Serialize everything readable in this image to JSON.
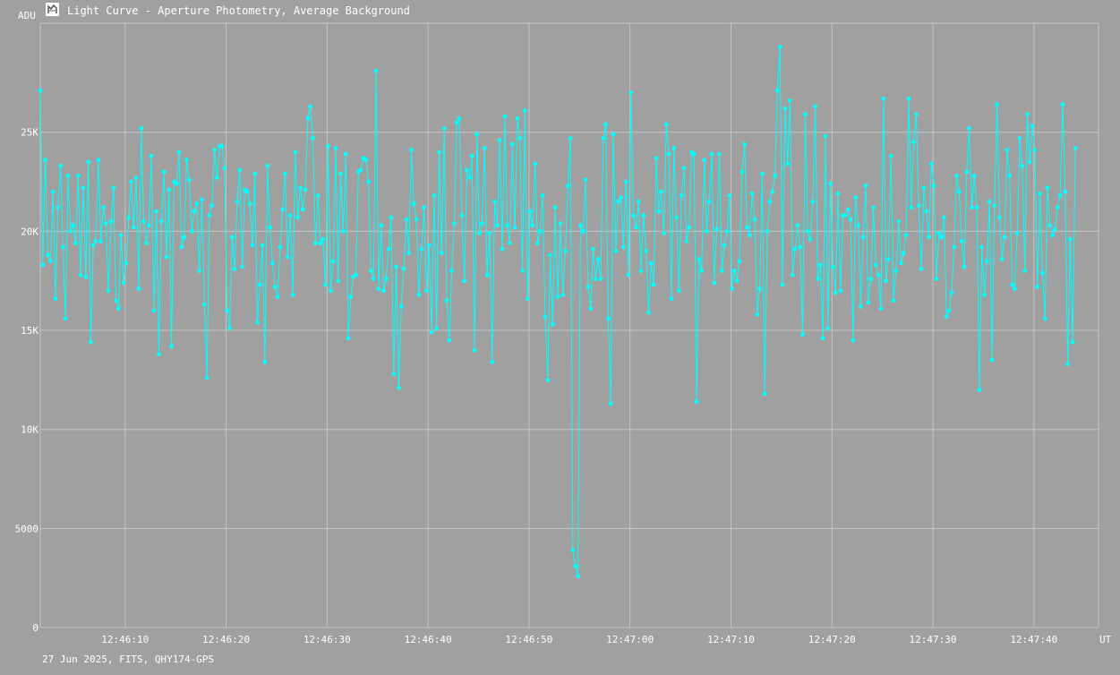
{
  "window": {
    "title": "Light Curve - Aperture Photometry, Average Background",
    "icon": "light-curve-app-icon",
    "footer": "27 Jun 2025, FITS, QHY174-GPS"
  },
  "colors": {
    "background": "#a0a0a0",
    "grid": "#c4c4c4",
    "series": "#00ffff",
    "text": "#ffffff"
  },
  "chart_data": {
    "type": "line",
    "title": "Light Curve - Aperture Photometry, Average Background",
    "xlabel": "UT",
    "ylabel": "ADU",
    "ylim": [
      0,
      30500
    ],
    "xlim": [
      "12:46:01.6",
      "12:47:46.4"
    ],
    "yticks": [
      {
        "value": 0,
        "label": "0"
      },
      {
        "value": 5000,
        "label": "5000"
      },
      {
        "value": 10000,
        "label": "10K"
      },
      {
        "value": 15000,
        "label": "15K"
      },
      {
        "value": 20000,
        "label": "20K"
      },
      {
        "value": 25000,
        "label": "25K"
      }
    ],
    "xticks": [
      "12:46:10",
      "12:46:20",
      "12:46:30",
      "12:46:40",
      "12:46:50",
      "12:47:00",
      "12:47:10",
      "12:47:20",
      "12:47:30",
      "12:47:40"
    ],
    "grid": true,
    "sample_interval_s": 0.25,
    "series": [
      {
        "values": [
          27100,
          18300,
          23600,
          18800,
          18500,
          22000,
          16600,
          21200,
          23300,
          19200,
          15600,
          22800,
          20000,
          20300,
          19400,
          22800,
          17800,
          22200,
          17700,
          23500,
          14400,
          19300,
          19500,
          23600,
          19500,
          21200,
          20400,
          17000,
          20500,
          22200,
          16500,
          16100,
          19800,
          17400,
          18400,
          20700,
          22500,
          20200,
          22700,
          17100,
          25200,
          20500,
          19400,
          20300,
          23800,
          16000,
          21000,
          13800,
          20500,
          23000,
          18700,
          22100,
          14200,
          22500,
          22400,
          24000,
          19200,
          19700,
          23600,
          22600,
          20000,
          21000,
          21400,
          18000,
          21600,
          16300,
          12600,
          20800,
          21300,
          24100,
          22700,
          24300,
          24300,
          23200,
          16000,
          15100,
          19700,
          18100,
          21500,
          23100,
          18200,
          22100,
          22000,
          21400,
          19300,
          22900,
          15400,
          17300,
          19300,
          13400,
          23300,
          20200,
          18400,
          17200,
          16700,
          19200,
          21100,
          22900,
          18700,
          20800,
          16800,
          24000,
          20700,
          22200,
          21100,
          22100,
          25700,
          26300,
          24700,
          19400,
          21800,
          19400,
          19600,
          17300,
          24300,
          17000,
          18500,
          24200,
          17500,
          22900,
          20000,
          23900,
          14600,
          16700,
          17700,
          17800,
          23000,
          23100,
          23700,
          23600,
          22500,
          18000,
          17600,
          28100,
          17100,
          20300,
          17000,
          17600,
          19100,
          20700,
          12800,
          18200,
          12100,
          16200,
          18100,
          20600,
          18900,
          24100,
          21400,
          20600,
          16800,
          19100,
          21200,
          17000,
          19300,
          14900,
          21800,
          15100,
          24000,
          18900,
          25200,
          16500,
          14500,
          18000,
          20400,
          25500,
          25700,
          20800,
          17500,
          23100,
          22700,
          23800,
          14000,
          24900,
          19900,
          20400,
          24200,
          17800,
          19900,
          13400,
          21500,
          20300,
          24600,
          19100,
          25800,
          20300,
          19400,
          24400,
          20200,
          25700,
          24700,
          18000,
          26100,
          16600,
          21000,
          20300,
          23400,
          19400,
          20000,
          21800,
          15700,
          12500,
          18800,
          15300,
          21200,
          16700,
          20400,
          16800,
          19000,
          22300,
          24700,
          3900,
          3100,
          2600,
          20300,
          20000,
          22600,
          17200,
          16100,
          19100,
          17600,
          18600,
          17600,
          24700,
          25400,
          15600,
          11300,
          24900,
          19000,
          21500,
          21700,
          19200,
          22500,
          17800,
          27000,
          20800,
          20200,
          21500,
          18000,
          20800,
          19000,
          15900,
          18400,
          17300,
          23700,
          21000,
          22000,
          19900,
          25400,
          23900,
          16600,
          24200,
          20700,
          17000,
          21800,
          23200,
          19500,
          20200,
          24000,
          23900,
          11400,
          18600,
          18000,
          23600,
          20000,
          21500,
          23900,
          17400,
          20100,
          23900,
          18000,
          19300,
          20000,
          21800,
          17100,
          18000,
          17500,
          18500,
          23000,
          24400,
          20200,
          19800,
          21900,
          20600,
          15800,
          17100,
          22900,
          11800,
          20000,
          21500,
          22000,
          22800,
          27100,
          29300,
          17300,
          26200,
          23400,
          26600,
          17800,
          19100,
          20300,
          19200,
          14800,
          25900,
          20000,
          19600,
          21500,
          26300,
          17600,
          18300,
          14600,
          24800,
          15100,
          22400,
          18200,
          16900,
          21900,
          17000,
          20800,
          20800,
          21100,
          20600,
          14500,
          21700,
          20300,
          16200,
          19700,
          22300,
          16400,
          17600,
          21200,
          18300,
          17800,
          16100,
          26700,
          17500,
          18600,
          23800,
          16500,
          18000,
          20500,
          18400,
          18900,
          19800,
          26700,
          21200,
          24500,
          25900,
          21300,
          18100,
          22200,
          21000,
          19700,
          23400,
          22300,
          17600,
          19900,
          19700,
          20700,
          15700,
          16000,
          16900,
          19200,
          22800,
          22000,
          19500,
          18200,
          23000,
          25200,
          21200,
          22800,
          21200,
          12000,
          19200,
          16800,
          18500,
          21500,
          13500,
          21300,
          26400,
          20700,
          18600,
          19700,
          24100,
          22800,
          17300,
          17100,
          19900,
          24700,
          23300,
          18000,
          25900,
          23500,
          25300,
          24100,
          17200,
          21900,
          17900,
          15600,
          22200,
          20300,
          19800,
          20100,
          21200,
          21800,
          26400,
          22000,
          13300,
          19600,
          14400,
          24200
        ]
      }
    ]
  }
}
